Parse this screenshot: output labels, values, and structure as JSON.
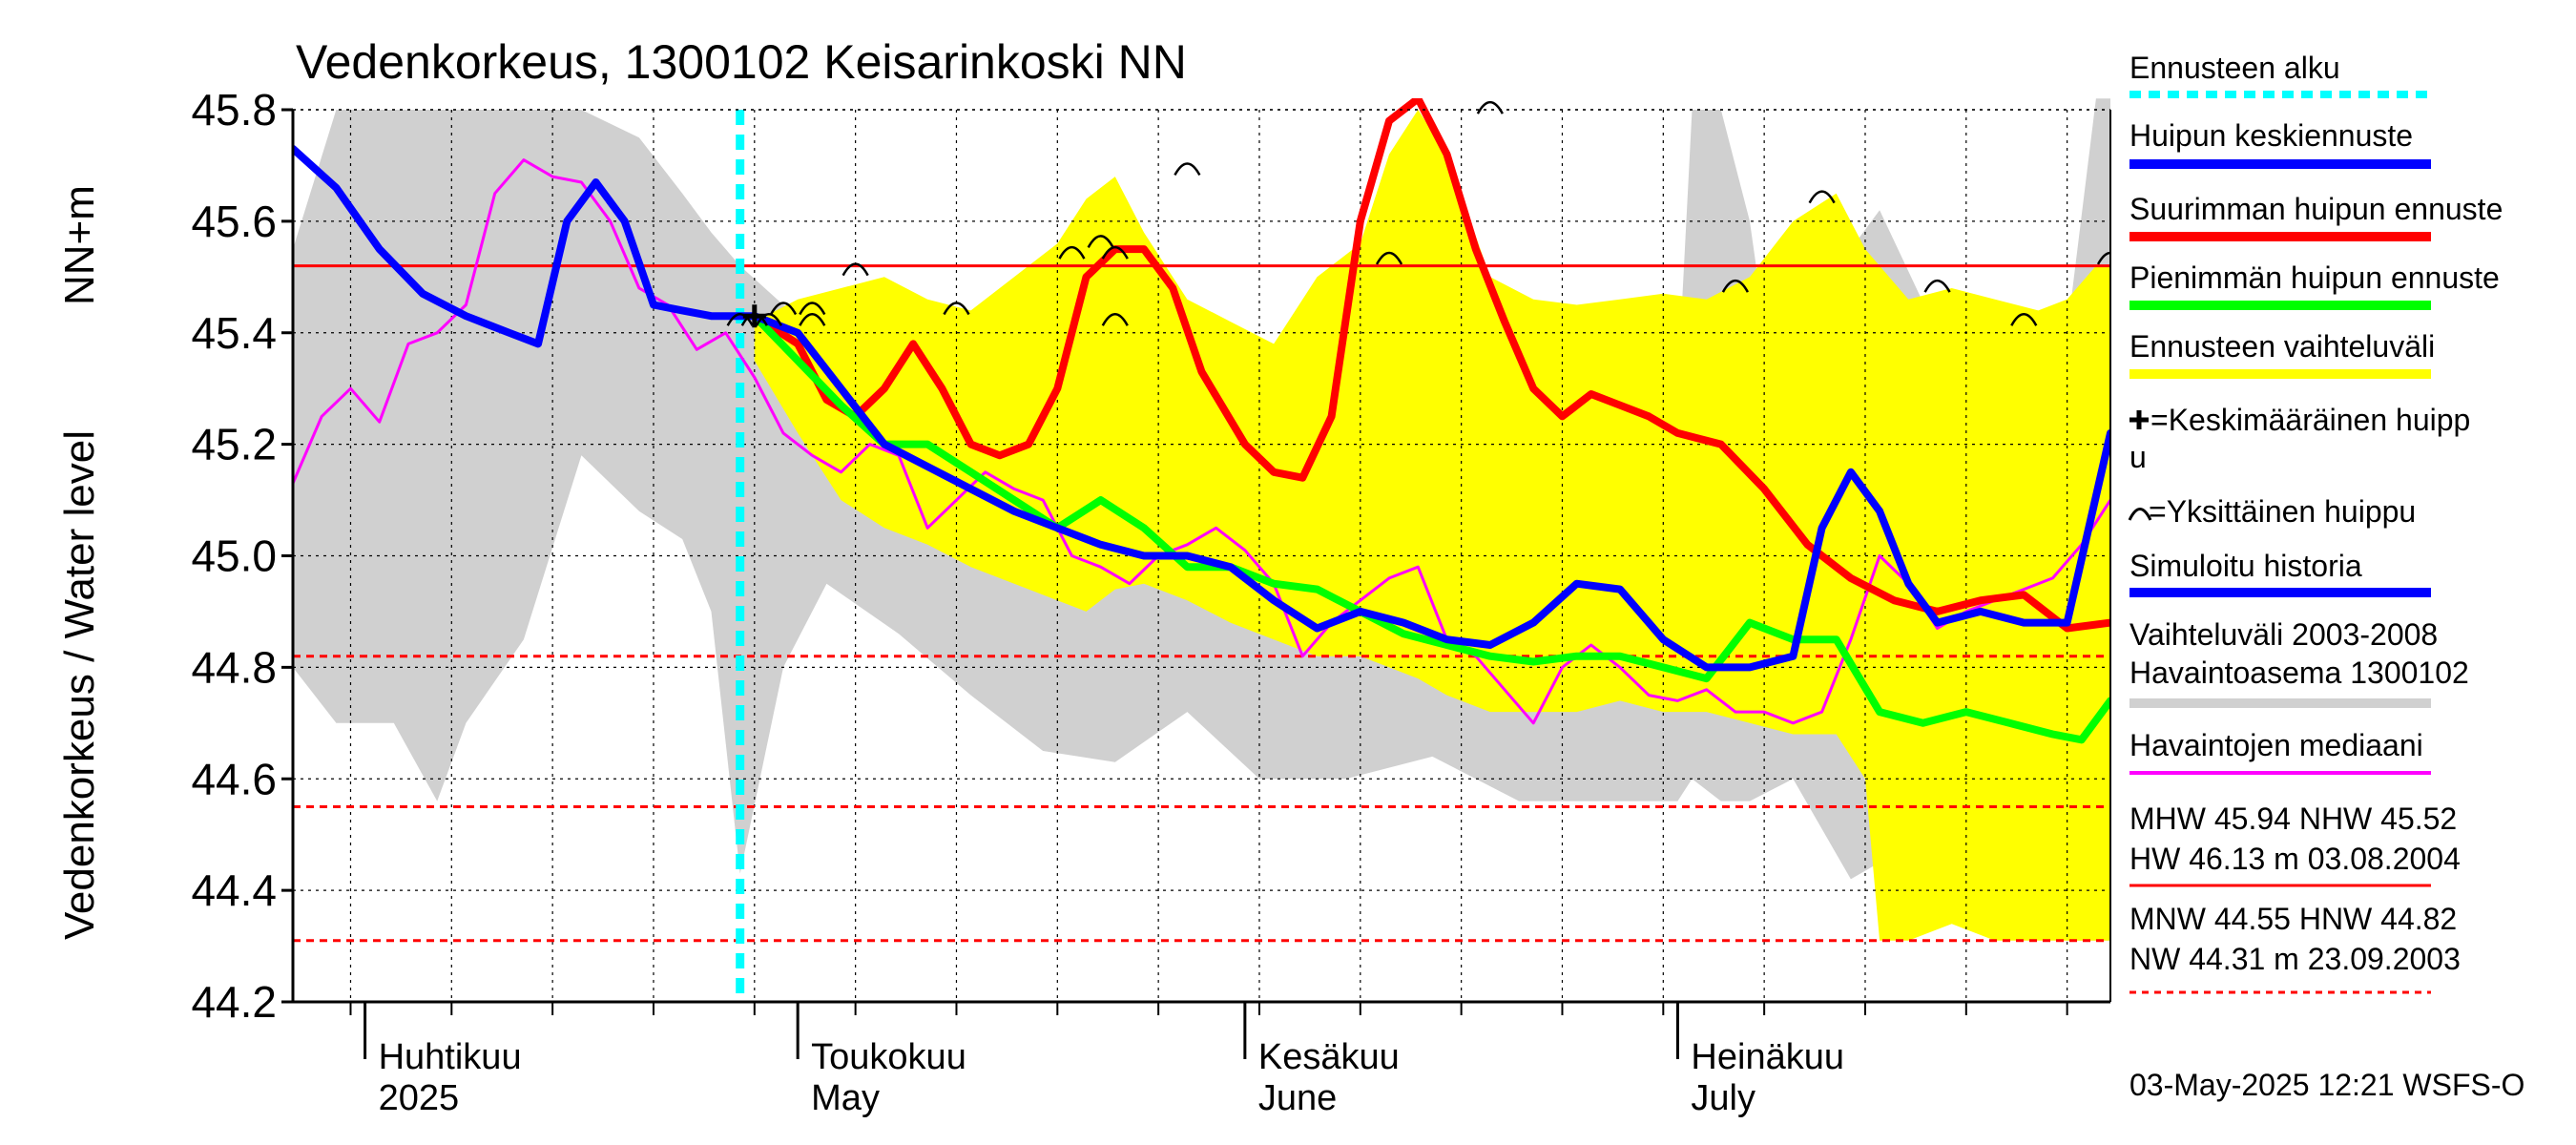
{
  "chart_data": {
    "type": "line",
    "title": "Vedenkorkeus, 1300102 Keisarinkoski NN",
    "ylabel_unit": "NN+m",
    "ylabel": "Vedenkorkeus / Water level",
    "ylim": [
      44.2,
      45.8
    ],
    "yticks": [
      "44.2",
      "44.4",
      "44.6",
      "44.8",
      "45.0",
      "45.2",
      "45.4",
      "45.6",
      "45.8"
    ],
    "x_start": "2025-03-27",
    "x_end": "2025-07-31",
    "month_labels": [
      {
        "date": "2025-04-01",
        "line1": "Huhtikuu",
        "line2": "2025"
      },
      {
        "date": "2025-05-01",
        "line1": "Toukokuu",
        "line2": "May"
      },
      {
        "date": "2025-06-01",
        "line1": "Kesäkuu",
        "line2": "June"
      },
      {
        "date": "2025-07-01",
        "line1": "Heinäkuu",
        "line2": "July"
      }
    ],
    "grid": true,
    "forecast_start": "2025-04-27",
    "reference_lines": [
      {
        "name": "NHW",
        "value": 45.52,
        "color": "#ff0000",
        "style": "solid"
      },
      {
        "name": "HNW",
        "value": 44.82,
        "color": "#ff0000",
        "style": "dashed"
      },
      {
        "name": "MNW",
        "value": 44.55,
        "color": "#ff0000",
        "style": "dashed"
      },
      {
        "name": "NW",
        "value": 44.31,
        "color": "#ff0000",
        "style": "dashed"
      }
    ],
    "grey_band": {
      "name": "Vaihteluväli 2003-2008 Havaintoasema 1300102",
      "color": "#d0d0d0",
      "x": [
        "2025-03-27",
        "2025-03-30",
        "2025-04-03",
        "2025-04-06",
        "2025-04-08",
        "2025-04-12",
        "2025-04-16",
        "2025-04-20",
        "2025-04-23",
        "2025-04-25",
        "2025-04-27",
        "2025-04-30",
        "2025-05-03",
        "2025-05-08",
        "2025-05-13",
        "2025-05-18",
        "2025-05-23",
        "2025-05-28",
        "2025-06-02",
        "2025-06-08",
        "2025-06-14",
        "2025-06-20",
        "2025-06-26",
        "2025-07-01",
        "2025-07-02",
        "2025-07-04",
        "2025-07-06",
        "2025-07-09",
        "2025-07-13",
        "2025-07-15",
        "2025-07-19",
        "2025-07-22",
        "2025-07-25",
        "2025-07-28",
        "2025-07-30",
        "2025-07-31"
      ],
      "upper": [
        45.55,
        45.8,
        45.8,
        45.8,
        45.8,
        45.8,
        45.8,
        45.75,
        45.65,
        45.58,
        45.52,
        45.45,
        45.42,
        45.32,
        45.28,
        45.28,
        45.3,
        45.27,
        45.22,
        45.22,
        45.18,
        45.16,
        45.1,
        45.3,
        45.8,
        45.8,
        45.6,
        45.05,
        45.55,
        45.62,
        45.4,
        45.33,
        45.33,
        45.4,
        45.82,
        45.82
      ],
      "lower": [
        44.8,
        44.7,
        44.7,
        44.56,
        44.7,
        44.85,
        45.18,
        45.08,
        45.03,
        44.9,
        44.43,
        44.8,
        44.95,
        44.86,
        44.75,
        44.65,
        44.63,
        44.72,
        44.6,
        44.6,
        44.64,
        44.56,
        44.56,
        44.56,
        44.6,
        44.56,
        44.56,
        44.6,
        44.42,
        44.45,
        44.36,
        44.36,
        44.36,
        44.31,
        44.31,
        44.31
      ]
    },
    "yellow_band": {
      "name": "Ennusteen vaihteluväli",
      "color": "#ffff00",
      "x": [
        "2025-04-28",
        "2025-05-01",
        "2025-05-04",
        "2025-05-07",
        "2025-05-10",
        "2025-05-13",
        "2025-05-16",
        "2025-05-19",
        "2025-05-21",
        "2025-05-23",
        "2025-05-25",
        "2025-05-28",
        "2025-05-31",
        "2025-06-03",
        "2025-06-06",
        "2025-06-09",
        "2025-06-11",
        "2025-06-13",
        "2025-06-15",
        "2025-06-18",
        "2025-06-21",
        "2025-06-24",
        "2025-06-27",
        "2025-06-30",
        "2025-07-03",
        "2025-07-06",
        "2025-07-09",
        "2025-07-12",
        "2025-07-14",
        "2025-07-15",
        "2025-07-17",
        "2025-07-20",
        "2025-07-23",
        "2025-07-26",
        "2025-07-28",
        "2025-07-30",
        "2025-07-31"
      ],
      "upper": [
        45.42,
        45.46,
        45.48,
        45.5,
        45.46,
        45.44,
        45.5,
        45.56,
        45.64,
        45.68,
        45.58,
        45.46,
        45.42,
        45.38,
        45.5,
        45.56,
        45.72,
        45.8,
        45.72,
        45.5,
        45.46,
        45.45,
        45.46,
        45.47,
        45.46,
        45.5,
        45.6,
        45.65,
        45.55,
        45.52,
        45.46,
        45.48,
        45.46,
        45.44,
        45.46,
        45.52,
        45.52
      ],
      "lower": [
        45.35,
        45.22,
        45.1,
        45.05,
        45.02,
        44.98,
        44.95,
        44.92,
        44.9,
        44.94,
        44.95,
        44.92,
        44.88,
        44.85,
        44.82,
        44.82,
        44.8,
        44.78,
        44.75,
        44.72,
        44.72,
        44.72,
        44.74,
        44.72,
        44.72,
        44.7,
        44.68,
        44.68,
        44.6,
        44.31,
        44.31,
        44.34,
        44.31,
        44.31,
        44.31,
        44.31,
        44.31
      ]
    },
    "series": [
      {
        "name": "Havaintojen mediaani",
        "color": "#ff00ff",
        "width": 3,
        "x": [
          "2025-03-27",
          "2025-03-29",
          "2025-03-31",
          "2025-04-02",
          "2025-04-04",
          "2025-04-06",
          "2025-04-08",
          "2025-04-10",
          "2025-04-12",
          "2025-04-14",
          "2025-04-16",
          "2025-04-18",
          "2025-04-20",
          "2025-04-22",
          "2025-04-24",
          "2025-04-26",
          "2025-04-28",
          "2025-04-30",
          "2025-05-02",
          "2025-05-04",
          "2025-05-06",
          "2025-05-08",
          "2025-05-10",
          "2025-05-12",
          "2025-05-14",
          "2025-05-16",
          "2025-05-18",
          "2025-05-20",
          "2025-05-22",
          "2025-05-24",
          "2025-05-26",
          "2025-05-28",
          "2025-05-30",
          "2025-06-01",
          "2025-06-03",
          "2025-06-05",
          "2025-06-07",
          "2025-06-09",
          "2025-06-11",
          "2025-06-13",
          "2025-06-15",
          "2025-06-17",
          "2025-06-19",
          "2025-06-21",
          "2025-06-23",
          "2025-06-25",
          "2025-06-27",
          "2025-06-29",
          "2025-07-01",
          "2025-07-03",
          "2025-07-05",
          "2025-07-07",
          "2025-07-09",
          "2025-07-11",
          "2025-07-13",
          "2025-07-15",
          "2025-07-17",
          "2025-07-19",
          "2025-07-21",
          "2025-07-23",
          "2025-07-25",
          "2025-07-27",
          "2025-07-29",
          "2025-07-31"
        ],
        "y": [
          45.13,
          45.25,
          45.3,
          45.24,
          45.38,
          45.4,
          45.45,
          45.65,
          45.71,
          45.68,
          45.67,
          45.6,
          45.48,
          45.45,
          45.37,
          45.4,
          45.32,
          45.22,
          45.18,
          45.15,
          45.2,
          45.18,
          45.05,
          45.1,
          45.15,
          45.12,
          45.1,
          45.0,
          44.98,
          44.95,
          45.0,
          45.02,
          45.05,
          45.01,
          44.95,
          44.82,
          44.88,
          44.92,
          44.96,
          44.98,
          44.85,
          44.82,
          44.76,
          44.7,
          44.8,
          44.84,
          44.8,
          44.75,
          44.74,
          44.76,
          44.72,
          44.72,
          44.7,
          44.72,
          44.85,
          45.0,
          44.95,
          44.87,
          44.9,
          44.92,
          44.94,
          44.96,
          45.02,
          45.1
        ]
      },
      {
        "name": "Suurimman huipun ennuste",
        "color": "#ff0000",
        "width": 8,
        "x": [
          "2025-04-28",
          "2025-05-01",
          "2025-05-03",
          "2025-05-05",
          "2025-05-07",
          "2025-05-09",
          "2025-05-11",
          "2025-05-13",
          "2025-05-15",
          "2025-05-17",
          "2025-05-19",
          "2025-05-21",
          "2025-05-23",
          "2025-05-25",
          "2025-05-27",
          "2025-05-29",
          "2025-06-01",
          "2025-06-03",
          "2025-06-05",
          "2025-06-07",
          "2025-06-09",
          "2025-06-11",
          "2025-06-13",
          "2025-06-15",
          "2025-06-17",
          "2025-06-19",
          "2025-06-21",
          "2025-06-23",
          "2025-06-25",
          "2025-06-27",
          "2025-06-29",
          "2025-07-01",
          "2025-07-04",
          "2025-07-07",
          "2025-07-10",
          "2025-07-13",
          "2025-07-16",
          "2025-07-19",
          "2025-07-22",
          "2025-07-25",
          "2025-07-28",
          "2025-07-31"
        ],
        "y": [
          45.43,
          45.38,
          45.28,
          45.25,
          45.3,
          45.38,
          45.3,
          45.2,
          45.18,
          45.2,
          45.3,
          45.5,
          45.55,
          45.55,
          45.48,
          45.33,
          45.2,
          45.15,
          45.14,
          45.25,
          45.6,
          45.78,
          45.82,
          45.72,
          45.55,
          45.42,
          45.3,
          45.25,
          45.29,
          45.27,
          45.25,
          45.22,
          45.2,
          45.12,
          45.02,
          44.96,
          44.92,
          44.9,
          44.92,
          44.93,
          44.87,
          44.88
        ]
      },
      {
        "name": "Pienimmän huipun ennuste",
        "color": "#00ff00",
        "width": 8,
        "x": [
          "2025-04-28",
          "2025-05-01",
          "2025-05-04",
          "2025-05-07",
          "2025-05-10",
          "2025-05-13",
          "2025-05-16",
          "2025-05-19",
          "2025-05-22",
          "2025-05-25",
          "2025-05-28",
          "2025-05-31",
          "2025-06-03",
          "2025-06-06",
          "2025-06-09",
          "2025-06-12",
          "2025-06-15",
          "2025-06-18",
          "2025-06-21",
          "2025-06-24",
          "2025-06-27",
          "2025-06-30",
          "2025-07-03",
          "2025-07-06",
          "2025-07-09",
          "2025-07-12",
          "2025-07-15",
          "2025-07-18",
          "2025-07-21",
          "2025-07-24",
          "2025-07-27",
          "2025-07-29",
          "2025-07-31"
        ],
        "y": [
          45.43,
          45.35,
          45.27,
          45.2,
          45.2,
          45.15,
          45.1,
          45.05,
          45.1,
          45.05,
          44.98,
          44.98,
          44.95,
          44.94,
          44.9,
          44.86,
          44.84,
          44.82,
          44.81,
          44.82,
          44.82,
          44.8,
          44.78,
          44.88,
          44.85,
          44.85,
          44.72,
          44.7,
          44.72,
          44.7,
          44.68,
          44.67,
          44.74
        ]
      },
      {
        "name": "Huipun keskiennuste",
        "color": "#0000ff",
        "width": 8,
        "x": [
          "2025-04-28",
          "2025-05-01",
          "2025-05-04",
          "2025-05-07",
          "2025-05-10",
          "2025-05-13",
          "2025-05-16",
          "2025-05-19",
          "2025-05-22",
          "2025-05-25",
          "2025-05-28",
          "2025-05-31",
          "2025-06-03",
          "2025-06-06",
          "2025-06-09",
          "2025-06-12",
          "2025-06-15",
          "2025-06-18",
          "2025-06-21",
          "2025-06-24",
          "2025-06-27",
          "2025-06-30",
          "2025-07-03",
          "2025-07-06",
          "2025-07-09",
          "2025-07-11",
          "2025-07-13",
          "2025-07-15",
          "2025-07-17",
          "2025-07-19",
          "2025-07-22",
          "2025-07-25",
          "2025-07-28",
          "2025-07-31"
        ],
        "y": [
          45.43,
          45.4,
          45.3,
          45.2,
          45.16,
          45.12,
          45.08,
          45.05,
          45.02,
          45.0,
          45.0,
          44.98,
          44.92,
          44.87,
          44.9,
          44.88,
          44.85,
          44.84,
          44.88,
          44.95,
          44.94,
          44.85,
          44.8,
          44.8,
          44.82,
          45.05,
          45.15,
          45.08,
          44.95,
          44.88,
          44.9,
          44.88,
          44.88,
          45.22
        ]
      },
      {
        "name": "Simuloitu historia",
        "color": "#0000ff",
        "width": 8,
        "x": [
          "2025-03-27",
          "2025-03-30",
          "2025-04-02",
          "2025-04-05",
          "2025-04-08",
          "2025-04-11",
          "2025-04-13",
          "2025-04-15",
          "2025-04-17",
          "2025-04-19",
          "2025-04-21",
          "2025-04-23",
          "2025-04-25",
          "2025-04-27",
          "2025-04-28"
        ],
        "y": [
          45.73,
          45.66,
          45.55,
          45.47,
          45.43,
          45.4,
          45.38,
          45.6,
          45.67,
          45.6,
          45.45,
          45.44,
          45.43,
          45.43,
          45.43
        ]
      }
    ],
    "average_peak": {
      "name": "Keskimääräinen huippu",
      "x": "2025-04-28",
      "y": 45.43
    },
    "individual_peaks": {
      "name": "Yksittäinen huippu",
      "x": [
        "2025-04-27",
        "2025-04-28",
        "2025-04-29",
        "2025-04-30",
        "2025-05-02",
        "2025-05-02",
        "2025-05-05",
        "2025-05-12",
        "2025-05-20",
        "2025-05-22",
        "2025-05-23",
        "2025-05-23",
        "2025-05-28",
        "2025-06-11",
        "2025-06-18",
        "2025-07-05",
        "2025-07-11",
        "2025-07-19",
        "2025-07-25",
        "2025-07-31"
      ],
      "y": [
        45.43,
        45.43,
        45.43,
        45.45,
        45.43,
        45.45,
        45.52,
        45.45,
        45.55,
        45.57,
        45.43,
        45.55,
        45.7,
        45.54,
        45.81,
        45.49,
        45.65,
        45.49,
        45.43,
        45.54
      ]
    },
    "legend": [
      {
        "label": "Ennusteen alku",
        "color": "#00ffff",
        "style": "dashed"
      },
      {
        "label": "Huipun keskiennuste",
        "color": "#0000ff",
        "style": "solid"
      },
      {
        "label": "Suurimman huipun ennuste",
        "color": "#ff0000",
        "style": "solid"
      },
      {
        "label": "Pienimmän huipun ennuste",
        "color": "#00ff00",
        "style": "solid"
      },
      {
        "label": "Ennusteen vaihteluväli",
        "color": "#ffff00",
        "style": "solid"
      },
      {
        "label": "=Keskimääräinen huipp",
        "label2": "u",
        "color": "#000000",
        "style": "plus"
      },
      {
        "label": "=Yksittäinen huippu",
        "color": "#000000",
        "style": "arc"
      },
      {
        "label": "Simuloitu historia",
        "color": "#0000ff",
        "style": "solid"
      },
      {
        "label": "Vaihteluväli 2003-2008",
        "label2": " Havaintoasema 1300102",
        "color": "#d0d0d0",
        "style": "solid"
      },
      {
        "label": "Havaintojen mediaani",
        "color": "#ff00ff",
        "style": "solid"
      }
    ],
    "stats": {
      "high": [
        "MHW  45.94 NHW  45.52",
        "HW  46.13 m 03.08.2004"
      ],
      "low": [
        "MNW  44.55 HNW  44.82",
        "NW  44.31 m 23.09.2003"
      ]
    },
    "footer": "03-May-2025 12:21 WSFS-O"
  }
}
